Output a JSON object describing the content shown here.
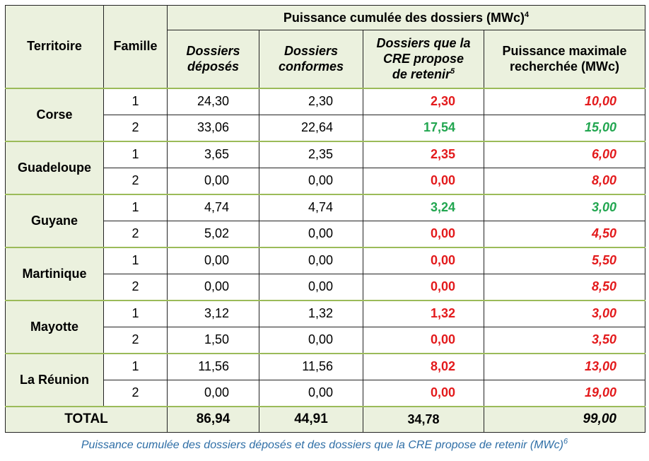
{
  "header": {
    "territoire": "Territoire",
    "famille": "Famille",
    "group_title": "Puissance cumulée des dossiers (MWc)",
    "group_sup": "4",
    "col_deposes": [
      "Dossiers",
      "déposés"
    ],
    "col_conformes": [
      "Dossiers",
      "conformes"
    ],
    "col_cre": [
      "Dossiers que la",
      "CRE propose",
      "de retenir"
    ],
    "col_cre_sup": "5",
    "col_max": [
      "Puissance maximale",
      "recherchée (MWc)"
    ]
  },
  "territories": [
    {
      "name": "Corse",
      "rows": [
        {
          "famille": "1",
          "deposes": "24,30",
          "conformes": "2,30",
          "cre": "2,30",
          "cre_color": "red",
          "max": "10,00",
          "max_color": "red"
        },
        {
          "famille": "2",
          "deposes": "33,06",
          "conformes": "22,64",
          "cre": "17,54",
          "cre_color": "green",
          "max": "15,00",
          "max_color": "green"
        }
      ]
    },
    {
      "name": "Guadeloupe",
      "rows": [
        {
          "famille": "1",
          "deposes": "3,65",
          "conformes": "2,35",
          "cre": "2,35",
          "cre_color": "red",
          "max": "6,00",
          "max_color": "red"
        },
        {
          "famille": "2",
          "deposes": "0,00",
          "conformes": "0,00",
          "cre": "0,00",
          "cre_color": "red",
          "max": "8,00",
          "max_color": "red"
        }
      ]
    },
    {
      "name": "Guyane",
      "rows": [
        {
          "famille": "1",
          "deposes": "4,74",
          "conformes": "4,74",
          "cre": "3,24",
          "cre_color": "green",
          "max": "3,00",
          "max_color": "green"
        },
        {
          "famille": "2",
          "deposes": "5,02",
          "conformes": "0,00",
          "cre": "0,00",
          "cre_color": "red",
          "max": "4,50",
          "max_color": "red"
        }
      ]
    },
    {
      "name": "Martinique",
      "rows": [
        {
          "famille": "1",
          "deposes": "0,00",
          "conformes": "0,00",
          "cre": "0,00",
          "cre_color": "red",
          "max": "5,50",
          "max_color": "red"
        },
        {
          "famille": "2",
          "deposes": "0,00",
          "conformes": "0,00",
          "cre": "0,00",
          "cre_color": "red",
          "max": "8,50",
          "max_color": "red"
        }
      ]
    },
    {
      "name": "Mayotte",
      "rows": [
        {
          "famille": "1",
          "deposes": "3,12",
          "conformes": "1,32",
          "cre": "1,32",
          "cre_color": "red",
          "max": "3,00",
          "max_color": "red"
        },
        {
          "famille": "2",
          "deposes": "1,50",
          "conformes": "0,00",
          "cre": "0,00",
          "cre_color": "red",
          "max": "3,50",
          "max_color": "red"
        }
      ]
    },
    {
      "name": "La Réunion",
      "rows": [
        {
          "famille": "1",
          "deposes": "11,56",
          "conformes": "11,56",
          "cre": "8,02",
          "cre_color": "red",
          "max": "13,00",
          "max_color": "red"
        },
        {
          "famille": "2",
          "deposes": "0,00",
          "conformes": "0,00",
          "cre": "0,00",
          "cre_color": "red",
          "max": "19,00",
          "max_color": "red"
        }
      ]
    }
  ],
  "total": {
    "label": "TOTAL",
    "deposes": "86,94",
    "conformes": "44,91",
    "cre": "34,78",
    "max": "99,00"
  },
  "caption": {
    "text": "Puissance cumulée des dossiers déposés et des dossiers que la CRE propose de retenir (MWc)",
    "sup": "6"
  }
}
